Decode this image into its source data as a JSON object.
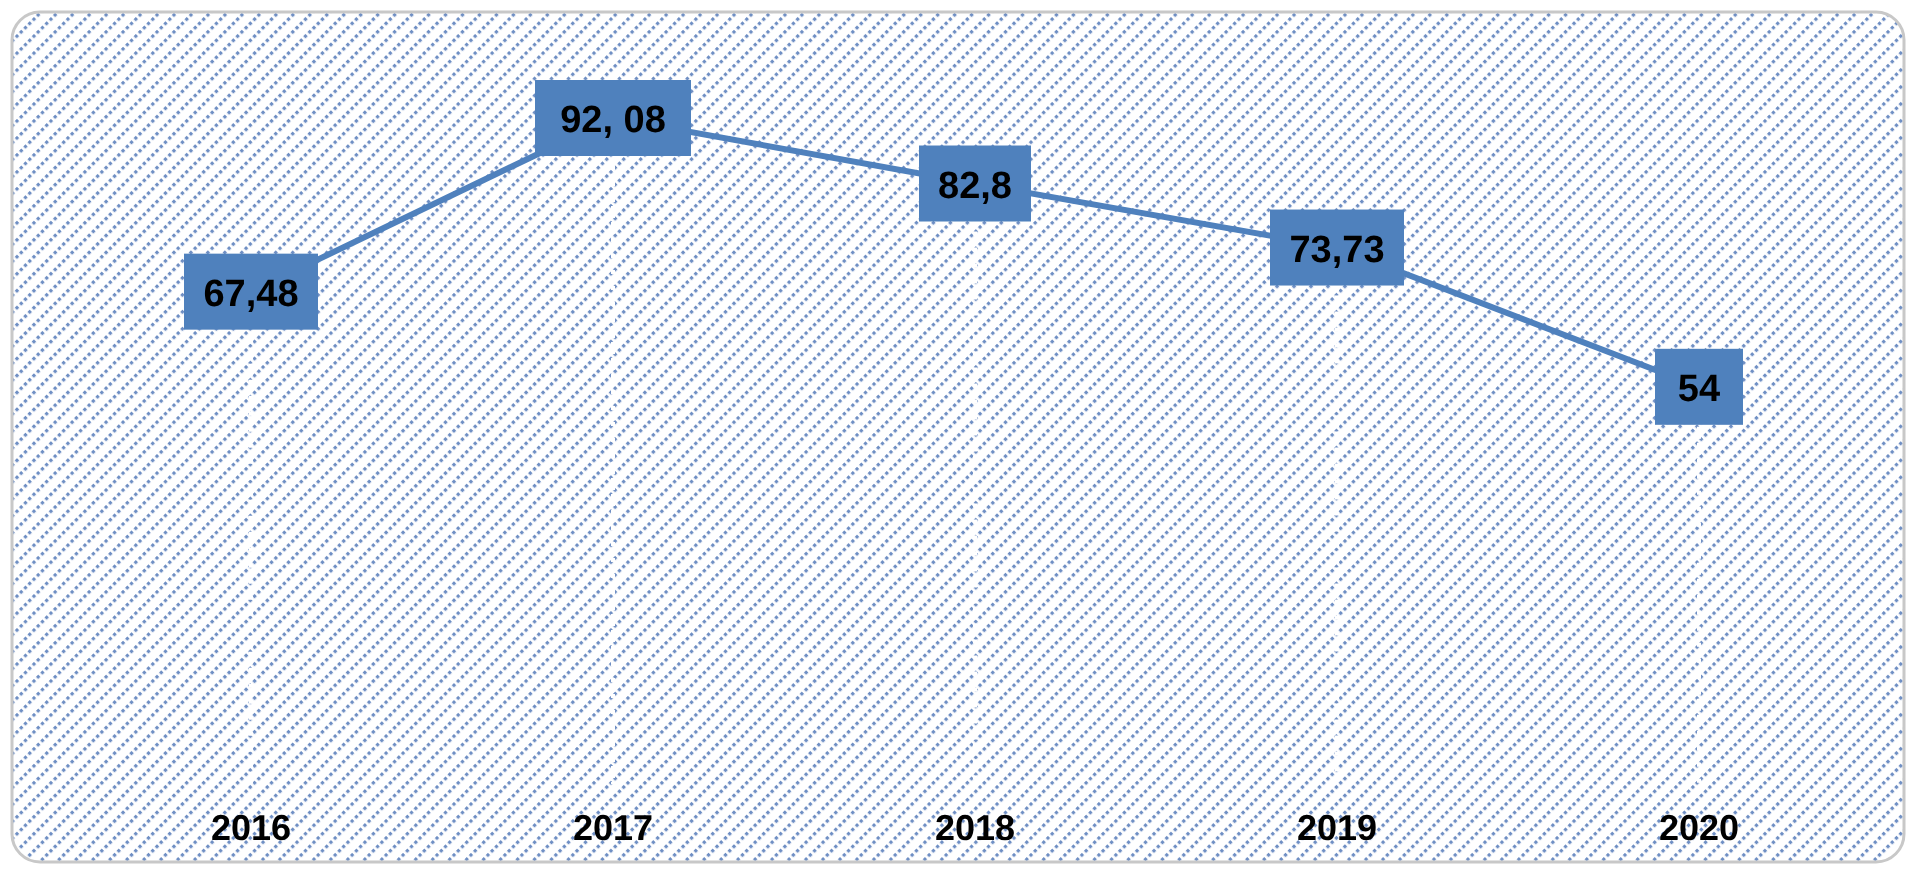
{
  "chart_data": {
    "type": "line",
    "categories": [
      "2016",
      "2017",
      "2018",
      "2019",
      "2020"
    ],
    "series": [
      {
        "color": "#4f81bd",
        "values": [
          67.48,
          92.08,
          82.8,
          73.73,
          54
        ],
        "value_labels": [
          "67,48",
          "92, 08",
          "82,8",
          "73,73",
          "54"
        ]
      }
    ],
    "grid": "x"
  }
}
